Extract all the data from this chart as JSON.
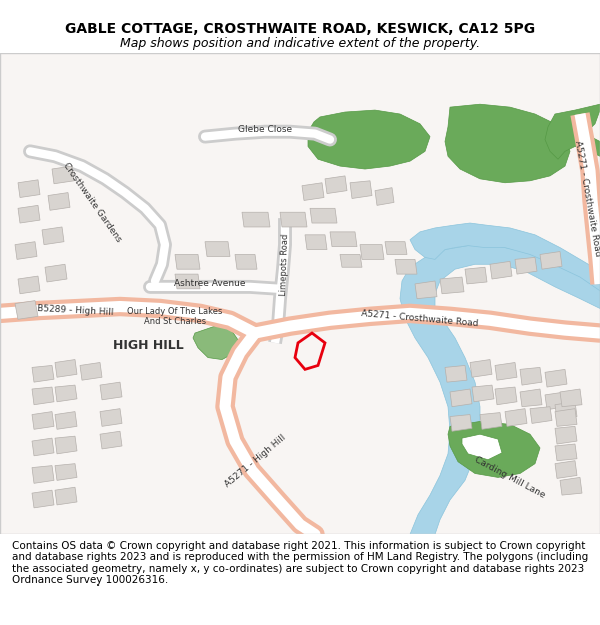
{
  "title": "GABLE COTTAGE, CROSTHWAITE ROAD, KESWICK, CA12 5PG",
  "subtitle": "Map shows position and indicative extent of the property.",
  "footer": "Contains OS data © Crown copyright and database right 2021. This information is subject to Crown copyright and database rights 2023 and is reproduced with the permission of HM Land Registry. The polygons (including the associated geometry, namely x, y co-ordinates) are subject to Crown copyright and database rights 2023 Ordnance Survey 100026316.",
  "bg_color": "#f5f0ee",
  "map_bg": "#f9f6f4",
  "road_color_main": "#f2b8a0",
  "road_color_secondary": "#ffffff",
  "building_color": "#d9d5d2",
  "building_outline": "#b0aba8",
  "green_area": "#7ab87a",
  "water_color": "#a8d4e8",
  "highlight_color": "#e8000e",
  "title_fontsize": 10,
  "subtitle_fontsize": 9,
  "footer_fontsize": 7.5
}
